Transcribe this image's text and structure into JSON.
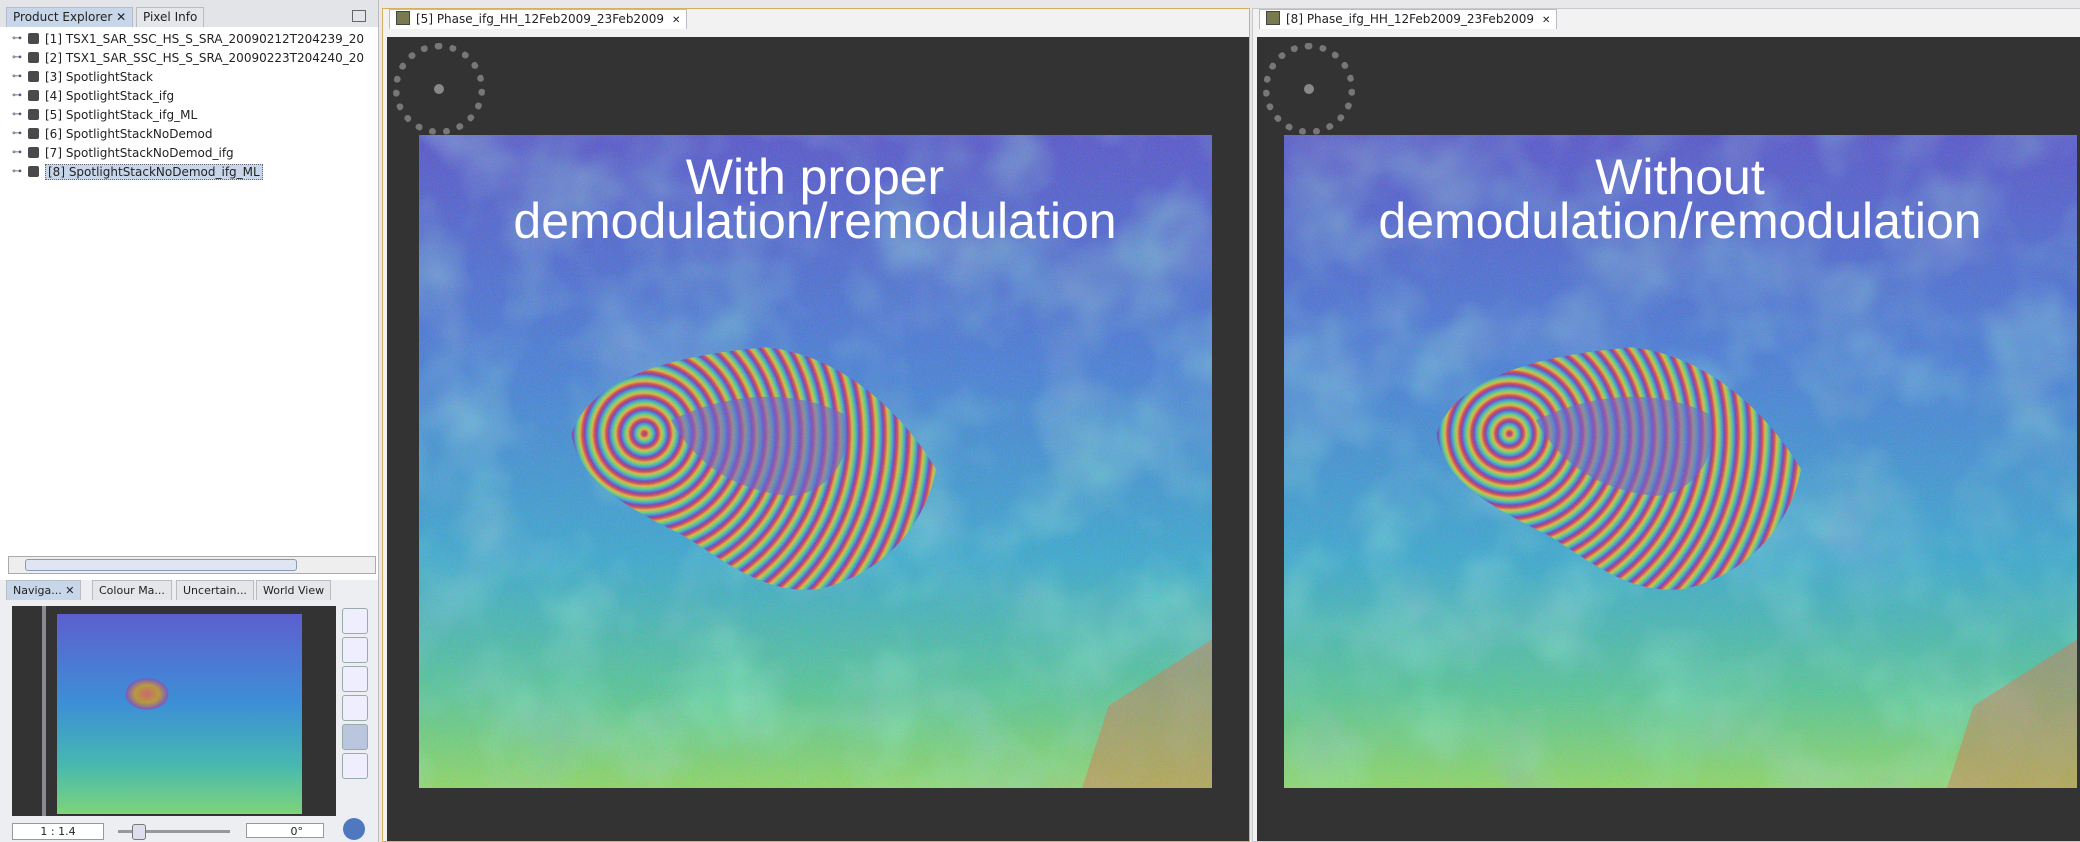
{
  "product_explorer": {
    "tabs": [
      "Product Explorer",
      "Pixel Info"
    ],
    "products": [
      "[1] TSX1_SAR_SSC_HS_S_SRA_20090212T204239_20",
      "[2] TSX1_SAR_SSC_HS_S_SRA_20090223T204240_20",
      "[3] SpotlightStack",
      "[4] SpotlightStack_ifg",
      "[5] SpotlightStack_ifg_ML",
      "[6] SpotlightStackNoDemod",
      "[7] SpotlightStackNoDemod_ifg",
      "[8] SpotlightStackNoDemod_ifg_ML"
    ]
  },
  "tool_window": {
    "tabs": [
      "Naviga...",
      "Colour Ma...",
      "Uncertain...",
      "World View"
    ],
    "zoom": "1 : 1.4",
    "rotation": "0°"
  },
  "views": [
    {
      "tab": "[5] Phase_ifg_HH_12Feb2009_23Feb2009",
      "overlay": [
        "With proper",
        "demodulation/remodulation"
      ]
    },
    {
      "tab": "[8] Phase_ifg_HH_12Feb2009_23Feb2009",
      "overlay": [
        "Without",
        "demodulation/remodulation"
      ]
    }
  ]
}
